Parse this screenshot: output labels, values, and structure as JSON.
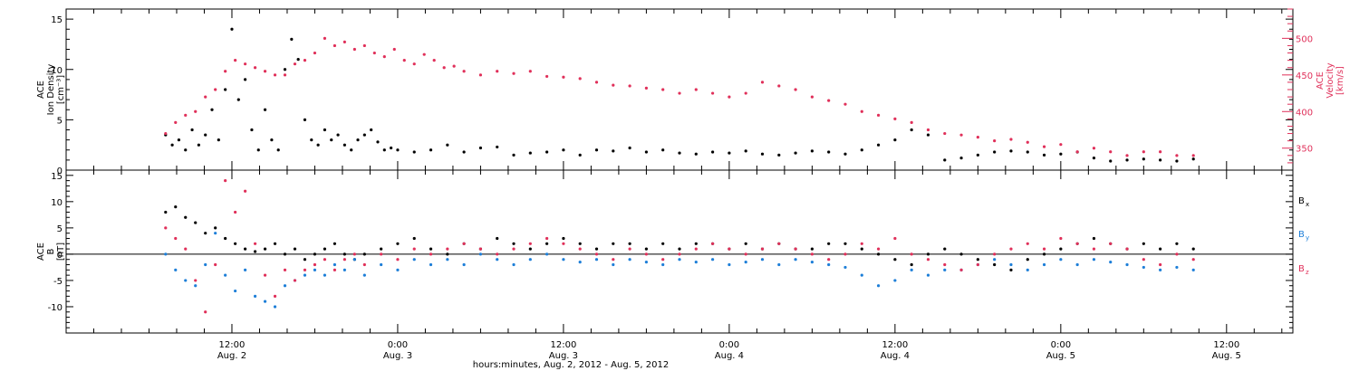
{
  "chart_data": [
    {
      "type": "scatter",
      "panel": "top",
      "ylabel_lines": [
        "ACE",
        "Ion Density",
        "[cm⁻³]"
      ],
      "ylim": [
        0,
        16
      ],
      "yticks": [
        "0",
        "5",
        "10",
        "15"
      ],
      "y2label_lines": [
        "ACE",
        "Velocity",
        "[km/s]"
      ],
      "y2lim": [
        320,
        540
      ],
      "y2ticks": [
        "350",
        "400",
        "450",
        "500"
      ],
      "colors": {
        "density": "#000000",
        "velocity": "#e0305a"
      },
      "series": [
        {
          "axis": "left",
          "x": [
            2.3,
            2.32,
            2.34,
            2.36,
            2.38,
            2.4,
            2.42,
            2.44,
            2.46,
            2.48,
            2.5,
            2.52,
            2.54,
            2.56,
            2.58,
            2.6,
            2.62,
            2.64,
            2.66,
            2.68,
            2.7,
            2.72,
            2.74,
            2.76,
            2.78,
            2.8,
            2.82,
            2.84,
            2.86,
            2.88,
            2.9,
            2.92,
            2.94,
            2.96,
            2.98,
            3.0,
            3.05,
            3.1,
            3.15,
            3.2,
            3.25,
            3.3,
            3.35,
            3.4,
            3.45,
            3.5,
            3.55,
            3.6,
            3.65,
            3.7,
            3.75,
            3.8,
            3.85,
            3.9,
            3.95,
            4.0,
            4.05,
            4.1,
            4.15,
            4.2,
            4.25,
            4.3,
            4.35,
            4.4,
            4.45,
            4.5,
            4.55,
            4.6,
            4.65,
            4.7,
            4.75,
            4.8,
            4.85,
            4.9,
            4.95,
            5.0,
            5.05,
            5.1,
            5.15,
            5.2,
            5.25,
            5.3,
            5.35,
            5.4
          ],
          "values": [
            3.5,
            2.5,
            3,
            2,
            4,
            2.5,
            3.5,
            6,
            3,
            8,
            14,
            7,
            9,
            4,
            2,
            6,
            3,
            2,
            10,
            13,
            11,
            5,
            3,
            2.5,
            4,
            3,
            3.5,
            2.5,
            2,
            3,
            3.5,
            4,
            2.8,
            2,
            2.2,
            2,
            1.8,
            2,
            2.5,
            1.8,
            2.2,
            2.3,
            1.5,
            1.7,
            1.8,
            2,
            1.5,
            2,
            1.9,
            2.2,
            1.8,
            2,
            1.7,
            1.6,
            1.8,
            1.7,
            1.9,
            1.6,
            1.5,
            1.7,
            1.9,
            1.8,
            1.6,
            2,
            2.5,
            3,
            4,
            3.5,
            1,
            1.2,
            1.5,
            1.8,
            1.9,
            1.8,
            1.5,
            1.6,
            1.8,
            1.2,
            0.9,
            1,
            1.1,
            1,
            0.9,
            1.1
          ]
        },
        {
          "axis": "right",
          "x": [
            2.3,
            2.33,
            2.36,
            2.39,
            2.42,
            2.45,
            2.48,
            2.51,
            2.54,
            2.57,
            2.6,
            2.63,
            2.66,
            2.69,
            2.72,
            2.75,
            2.78,
            2.81,
            2.84,
            2.87,
            2.9,
            2.93,
            2.96,
            2.99,
            3.02,
            3.05,
            3.08,
            3.11,
            3.14,
            3.17,
            3.2,
            3.25,
            3.3,
            3.35,
            3.4,
            3.45,
            3.5,
            3.55,
            3.6,
            3.65,
            3.7,
            3.75,
            3.8,
            3.85,
            3.9,
            3.95,
            4.0,
            4.05,
            4.1,
            4.15,
            4.2,
            4.25,
            4.3,
            4.35,
            4.4,
            4.45,
            4.5,
            4.55,
            4.6,
            4.65,
            4.7,
            4.75,
            4.8,
            4.85,
            4.9,
            4.95,
            5.0,
            5.05,
            5.1,
            5.15,
            5.2,
            5.25,
            5.3,
            5.35,
            5.4
          ],
          "values": [
            370,
            385,
            395,
            400,
            420,
            430,
            455,
            470,
            465,
            460,
            455,
            450,
            450,
            465,
            470,
            480,
            500,
            490,
            495,
            485,
            490,
            480,
            475,
            485,
            470,
            465,
            478,
            470,
            460,
            462,
            455,
            450,
            455,
            452,
            455,
            448,
            447,
            445,
            440,
            436,
            435,
            432,
            430,
            425,
            430,
            425,
            420,
            425,
            440,
            435,
            430,
            420,
            415,
            410,
            400,
            395,
            390,
            385,
            375,
            370,
            368,
            365,
            360,
            362,
            358,
            352,
            355,
            345,
            350,
            345,
            340,
            345,
            345,
            340,
            340
          ]
        }
      ]
    },
    {
      "type": "scatter",
      "panel": "bottom",
      "ylabel_lines": [
        "ACE",
        "B",
        "[nT]"
      ],
      "ylim": [
        -15,
        16
      ],
      "yticks": [
        "-10",
        "-5",
        "0",
        "5",
        "10",
        "15"
      ],
      "xlim": [
        2.0,
        5.7
      ],
      "xticks": [
        {
          "time": "12:00",
          "date": "Aug. 2"
        },
        {
          "time": "0:00",
          "date": "Aug. 3"
        },
        {
          "time": "12:00",
          "date": "Aug. 3"
        },
        {
          "time": "0:00",
          "date": "Aug. 4"
        },
        {
          "time": "12:00",
          "date": "Aug. 4"
        },
        {
          "time": "0:00",
          "date": "Aug. 5"
        },
        {
          "time": "12:00",
          "date": "Aug. 5"
        }
      ],
      "xlabel": "hours:minutes, Aug.  2, 2012 - Aug.  5, 2012",
      "colors": {
        "Bx": "#000000",
        "By": "#1e7fd8",
        "Bz": "#e0305a"
      },
      "legend": [
        {
          "base": "B",
          "sub": "x",
          "color": "#000000"
        },
        {
          "base": "B",
          "sub": "y",
          "color": "#1e7fd8"
        },
        {
          "base": "B",
          "sub": "z",
          "color": "#e0305a"
        }
      ],
      "series": [
        {
          "name": "Bx",
          "x": [
            2.3,
            2.33,
            2.36,
            2.39,
            2.42,
            2.45,
            2.48,
            2.51,
            2.54,
            2.57,
            2.6,
            2.63,
            2.66,
            2.69,
            2.72,
            2.75,
            2.78,
            2.81,
            2.84,
            2.87,
            2.9,
            2.95,
            3.0,
            3.05,
            3.1,
            3.15,
            3.2,
            3.25,
            3.3,
            3.35,
            3.4,
            3.45,
            3.5,
            3.55,
            3.6,
            3.65,
            3.7,
            3.75,
            3.8,
            3.85,
            3.9,
            3.95,
            4.0,
            4.05,
            4.1,
            4.15,
            4.2,
            4.25,
            4.3,
            4.35,
            4.4,
            4.45,
            4.5,
            4.55,
            4.6,
            4.65,
            4.7,
            4.75,
            4.8,
            4.85,
            4.9,
            4.95,
            5.0,
            5.05,
            5.1,
            5.15,
            5.2,
            5.25,
            5.3,
            5.35,
            5.4
          ],
          "values": [
            8,
            9,
            7,
            6,
            4,
            5,
            3,
            2,
            1,
            0.5,
            1,
            2,
            0,
            1,
            -1,
            0,
            1,
            2,
            0,
            -1,
            0,
            1,
            2,
            3,
            1,
            0,
            2,
            1,
            3,
            2,
            1,
            2,
            3,
            2,
            1,
            2,
            2,
            1,
            2,
            1,
            2,
            2,
            1,
            2,
            1,
            2,
            1,
            1,
            2,
            2,
            1,
            0,
            -1,
            -2,
            0,
            1,
            0,
            -1,
            -2,
            -3,
            -1,
            0,
            1,
            2,
            3,
            2,
            1,
            2,
            1,
            2,
            1
          ]
        },
        {
          "name": "By",
          "x": [
            2.3,
            2.33,
            2.36,
            2.39,
            2.42,
            2.45,
            2.48,
            2.51,
            2.54,
            2.57,
            2.6,
            2.63,
            2.66,
            2.69,
            2.72,
            2.75,
            2.78,
            2.81,
            2.84,
            2.87,
            2.9,
            2.95,
            3.0,
            3.05,
            3.1,
            3.15,
            3.2,
            3.25,
            3.3,
            3.35,
            3.4,
            3.45,
            3.5,
            3.55,
            3.6,
            3.65,
            3.7,
            3.75,
            3.8,
            3.85,
            3.9,
            3.95,
            4.0,
            4.05,
            4.1,
            4.15,
            4.2,
            4.25,
            4.3,
            4.35,
            4.4,
            4.45,
            4.5,
            4.55,
            4.6,
            4.65,
            4.7,
            4.75,
            4.8,
            4.85,
            4.9,
            4.95,
            5.0,
            5.05,
            5.1,
            5.15,
            5.2,
            5.25,
            5.3,
            5.35,
            5.4
          ],
          "values": [
            0,
            -3,
            -5,
            -6,
            -2,
            4,
            -4,
            -7,
            -3,
            -8,
            -9,
            -10,
            -6,
            -5,
            -4,
            -3,
            -4,
            -2,
            -3,
            -1,
            -4,
            -2,
            -3,
            -1,
            -2,
            -1,
            -2,
            0,
            -1,
            -2,
            -1,
            0,
            -1,
            -1.5,
            -1,
            -2,
            -1,
            -1.5,
            -2,
            -1,
            -1.5,
            -1,
            -2,
            -1.5,
            -1,
            -2,
            -1,
            -1.5,
            -2,
            -2.5,
            -4,
            -6,
            -5,
            -3,
            -4,
            -3,
            -3,
            -2,
            -1,
            -2,
            -3,
            -2,
            -1,
            -2,
            -1,
            -1.5,
            -2,
            -2.5,
            -3,
            -2.5,
            -3
          ]
        },
        {
          "name": "Bz",
          "x": [
            2.3,
            2.33,
            2.36,
            2.39,
            2.42,
            2.45,
            2.48,
            2.51,
            2.54,
            2.57,
            2.6,
            2.63,
            2.66,
            2.69,
            2.72,
            2.75,
            2.78,
            2.81,
            2.84,
            2.87,
            2.9,
            2.95,
            3.0,
            3.05,
            3.1,
            3.15,
            3.2,
            3.25,
            3.3,
            3.35,
            3.4,
            3.45,
            3.5,
            3.55,
            3.6,
            3.65,
            3.7,
            3.75,
            3.8,
            3.85,
            3.9,
            3.95,
            4.0,
            4.05,
            4.1,
            4.15,
            4.2,
            4.25,
            4.3,
            4.35,
            4.4,
            4.45,
            4.5,
            4.55,
            4.6,
            4.65,
            4.7,
            4.75,
            4.8,
            4.85,
            4.9,
            4.95,
            5.0,
            5.05,
            5.1,
            5.15,
            5.2,
            5.25,
            5.3,
            5.35,
            5.4
          ],
          "values": [
            5,
            3,
            1,
            -5,
            -11,
            -2,
            14,
            8,
            12,
            2,
            -4,
            -8,
            -3,
            -5,
            -3,
            -2,
            -1,
            -3,
            -1,
            0,
            -2,
            0,
            -1,
            1,
            0,
            1,
            2,
            1,
            0,
            1,
            2,
            3,
            2,
            1,
            0,
            -1,
            1,
            0,
            -1,
            0,
            1,
            2,
            1,
            0,
            1,
            2,
            1,
            0,
            -1,
            0,
            2,
            1,
            3,
            0,
            -1,
            -2,
            -3,
            -2,
            0,
            1,
            2,
            1,
            3,
            2,
            1,
            2,
            1,
            -1,
            -2,
            0,
            -1
          ]
        }
      ]
    }
  ]
}
